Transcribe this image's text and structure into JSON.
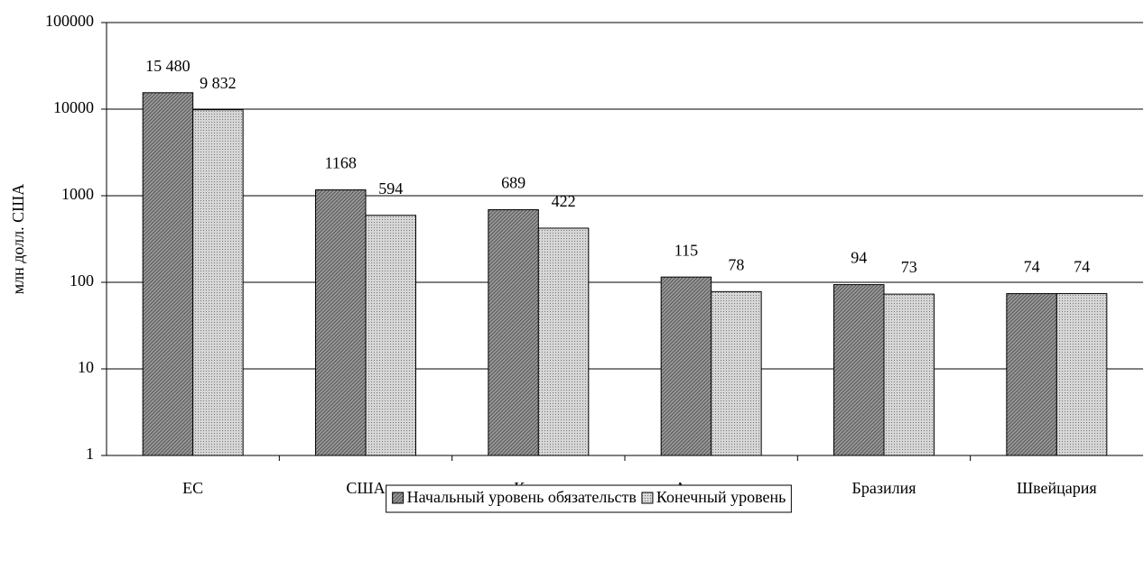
{
  "chart_data": {
    "type": "bar",
    "y_label": "млн долл. США",
    "categories": [
      "ЕС",
      "США",
      "Канада",
      "Австралия",
      "Бразилия",
      "Швейцария"
    ],
    "series": [
      {
        "name": "Начальный уровень обязательств",
        "color": "#9a9a9a",
        "values": [
          15480,
          1168,
          689,
          115,
          94,
          74
        ],
        "value_labels": [
          "15 480",
          "1168",
          "689",
          "115",
          "94",
          "74"
        ]
      },
      {
        "name": "Конечный уровень",
        "color": "#d6d6d6",
        "values": [
          9832,
          594,
          422,
          78,
          73,
          74
        ],
        "value_labels": [
          "9 832",
          "594",
          "422",
          "78",
          "73",
          "74"
        ]
      }
    ],
    "ylim": [
      1,
      100000
    ],
    "yticks": [
      1,
      10,
      100,
      1000,
      10000,
      100000
    ],
    "log_scale": true,
    "grid": true,
    "legend": "bottom"
  }
}
